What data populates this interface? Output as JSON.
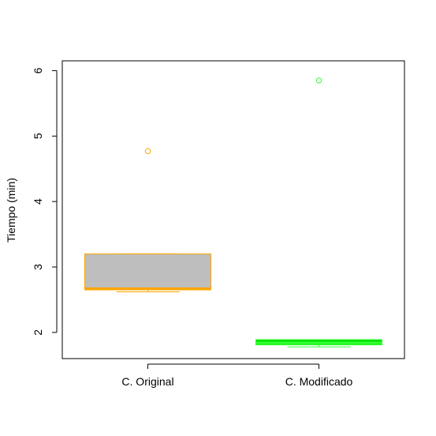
{
  "chart_data": {
    "type": "box",
    "title": "",
    "xlabel": "",
    "ylabel": "Tiempo (min)",
    "ylim": [
      1.6,
      6.15
    ],
    "yticks": [
      2,
      3,
      4,
      5,
      6
    ],
    "categories": [
      "C. Original",
      "C. Modificado"
    ],
    "boxes": [
      {
        "category": "C. Original",
        "min": 2.62,
        "q1": 2.65,
        "median": 2.67,
        "q3": 3.2,
        "max": 3.2,
        "outliers": [
          4.77
        ],
        "fill": "#bebebe",
        "border": "#ffa500"
      },
      {
        "category": "C. Modificado",
        "min": 1.78,
        "q1": 1.81,
        "median": 1.84,
        "q3": 1.89,
        "max": 1.89,
        "outliers": [
          5.85
        ],
        "fill": "#00e000",
        "border": "#33ff33"
      }
    ],
    "grid": false,
    "legend": "none"
  }
}
